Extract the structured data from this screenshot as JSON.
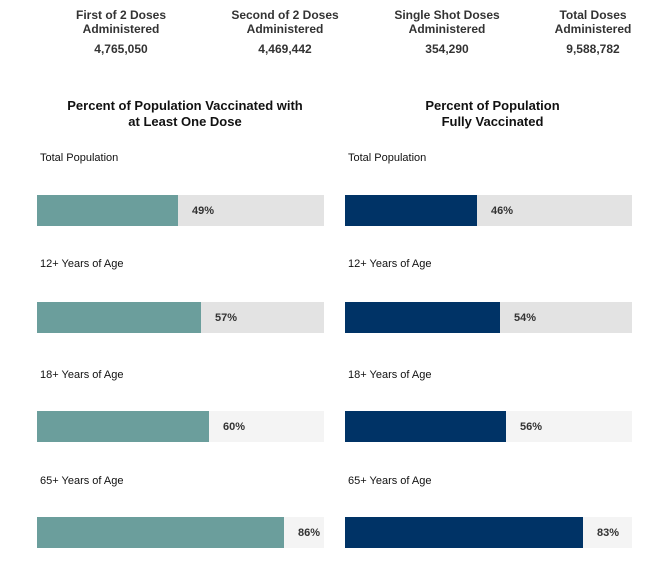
{
  "stats": [
    {
      "label": "First of 2 Doses\nAdministered",
      "value": "4,765,050"
    },
    {
      "label": "Second of 2 Doses\nAdministered",
      "value": "4,469,442"
    },
    {
      "label": "Single Shot Doses\nAdministered",
      "value": "354,290"
    },
    {
      "label": "Total Doses\nAdministered",
      "value": "9,588,782"
    }
  ],
  "colors": {
    "at_least_one": "#6b9e9c",
    "fully": "#003366",
    "track_dark": "#e3e3e3",
    "track_light": "#f4f4f4"
  },
  "chart_data": [
    {
      "type": "bar",
      "title": "Percent of Population Vaccinated with\nat Least One Dose",
      "categories": [
        "Total Population",
        "12+ Years of Age",
        "18+ Years of Age",
        "65+ Years of Age"
      ],
      "values": [
        49,
        57,
        60,
        86
      ],
      "labels": [
        "49%",
        "57%",
        "60%",
        "86%"
      ],
      "ylim": [
        0,
        100
      ]
    },
    {
      "type": "bar",
      "title": "Percent of Population\nFully Vaccinated",
      "categories": [
        "Total Population",
        "12+ Years of Age",
        "18+ Years of Age",
        "65+ Years of Age"
      ],
      "values": [
        46,
        54,
        56,
        83
      ],
      "labels": [
        "46%",
        "54%",
        "56%",
        "83%"
      ],
      "ylim": [
        0,
        100
      ]
    }
  ]
}
